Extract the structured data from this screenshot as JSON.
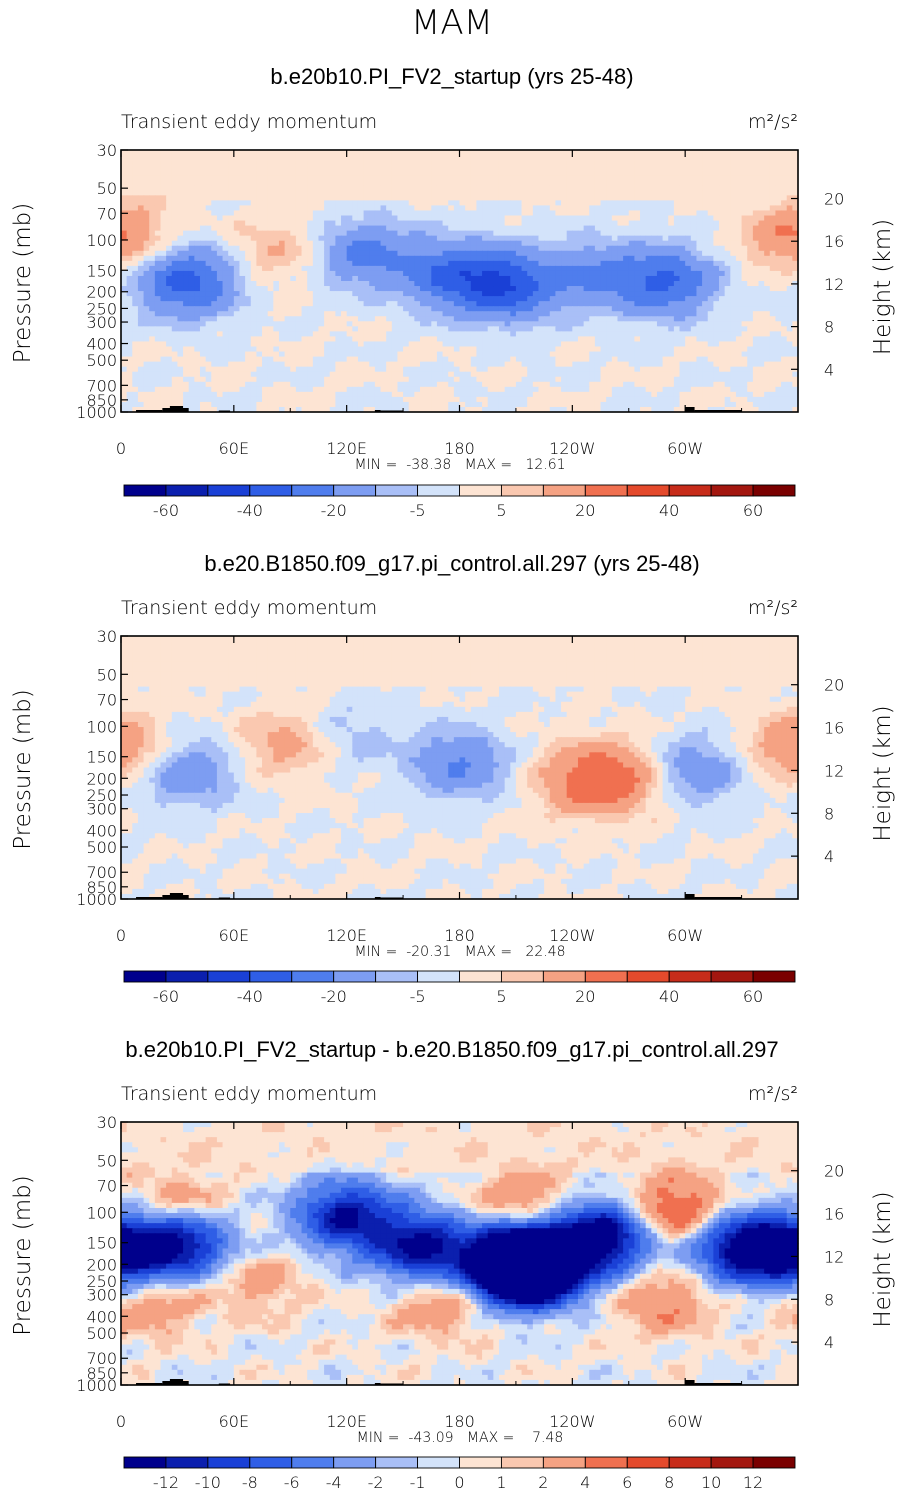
{
  "page": {
    "season": "MAM"
  },
  "colors": {
    "scale": [
      "#00008c",
      "#0b1fae",
      "#1a40d6",
      "#2f5ee6",
      "#4f7ded",
      "#7d9df2",
      "#a9bff7",
      "#d3e3fa",
      "#fde4d3",
      "#fac8b0",
      "#f5a283",
      "#f07050",
      "#e44a2c",
      "#c72c1a",
      "#a3170f",
      "#7a0000"
    ],
    "topography": "#000000"
  },
  "colorbars": [
    {
      "labels": [
        "-60",
        "-40",
        "-20",
        "-5",
        "5",
        "20",
        "40",
        "60"
      ]
    },
    {
      "labels": [
        "-60",
        "-40",
        "-20",
        "-5",
        "5",
        "20",
        "40",
        "60"
      ]
    },
    {
      "labels": [
        "-12",
        "-10",
        "-8",
        "-6",
        "-4",
        "-2",
        "-1",
        "0",
        "1",
        "2",
        "4",
        "6",
        "8",
        "10",
        "12"
      ]
    }
  ],
  "chart_data": [
    {
      "type": "heatmap",
      "title": "b.e20b10.PI_FV2_startup (yrs 25-48)",
      "subtitle_left": "Transient eddy momentum",
      "units": "m²/s²",
      "ylabel": "Pressure (mb)",
      "ylabel_right": "Height (km)",
      "x_ticks": [
        "0",
        "60E",
        "120E",
        "180",
        "120W",
        "60W"
      ],
      "y_ticks": [
        "30",
        "50",
        "70",
        "100",
        "150",
        "200",
        "250",
        "300",
        "400",
        "500",
        "700",
        "850",
        "1000"
      ],
      "y_ticks_right": [
        "20",
        "16",
        "12",
        "8",
        "4"
      ],
      "min_max_text": "MIN =  -38.38   MAX =   12.61",
      "levels": [
        -70,
        -60,
        -50,
        -40,
        -30,
        -20,
        -10,
        -5,
        0,
        5,
        10,
        20,
        30,
        40,
        50,
        60,
        70
      ],
      "features": [
        {
          "lon": 35,
          "p": 175,
          "value": -35
        },
        {
          "lon": 205,
          "p": 185,
          "value": -36
        },
        {
          "lon": 175,
          "p": 160,
          "value": -27
        },
        {
          "lon": 290,
          "p": 175,
          "value": -31
        },
        {
          "lon": 130,
          "p": 120,
          "value": -22
        },
        {
          "lon": 250,
          "p": 160,
          "value": -18
        },
        {
          "lon": 0,
          "p": 95,
          "value": 11
        },
        {
          "lon": 82,
          "p": 115,
          "value": 10
        },
        {
          "lon": 357,
          "p": 95,
          "value": 10
        }
      ]
    },
    {
      "type": "heatmap",
      "title": "b.e20.B1850.f09_g17.pi_control.all.297 (yrs 25-48)",
      "subtitle_left": "Transient eddy momentum",
      "units": "m²/s²",
      "ylabel": "Pressure (mb)",
      "ylabel_right": "Height (km)",
      "x_ticks": [
        "0",
        "60E",
        "120E",
        "180",
        "120W",
        "60W"
      ],
      "y_ticks": [
        "30",
        "50",
        "70",
        "100",
        "150",
        "200",
        "250",
        "300",
        "400",
        "500",
        "700",
        "850",
        "1000"
      ],
      "y_ticks_right": [
        "20",
        "16",
        "12",
        "8",
        "4"
      ],
      "min_max_text": "MIN =  -20.31   MAX =   22.48",
      "levels": [
        -70,
        -60,
        -50,
        -40,
        -30,
        -20,
        -10,
        -5,
        0,
        5,
        10,
        20,
        30,
        40,
        50,
        60,
        70
      ],
      "features": [
        {
          "lon": 35,
          "p": 185,
          "value": -18
        },
        {
          "lon": 180,
          "p": 165,
          "value": -20
        },
        {
          "lon": 305,
          "p": 180,
          "value": -17
        },
        {
          "lon": 120,
          "p": 110,
          "value": -8
        },
        {
          "lon": 265,
          "p": 200,
          "value": 20
        },
        {
          "lon": 245,
          "p": 205,
          "value": 17
        },
        {
          "lon": 88,
          "p": 125,
          "value": 14
        },
        {
          "lon": 2,
          "p": 140,
          "value": 11
        },
        {
          "lon": 355,
          "p": 120,
          "value": 8
        }
      ]
    },
    {
      "type": "heatmap",
      "title": "b.e20b10.PI_FV2_startup - b.e20.B1850.f09_g17.pi_control.all.297",
      "subtitle_left": "Transient eddy momentum",
      "units": "m²/s²",
      "ylabel": "Pressure (mb)",
      "ylabel_right": "Height (km)",
      "x_ticks": [
        "0",
        "60E",
        "120E",
        "180",
        "120W",
        "60W"
      ],
      "y_ticks": [
        "30",
        "50",
        "70",
        "100",
        "150",
        "200",
        "250",
        "300",
        "400",
        "500",
        "700",
        "850",
        "1000"
      ],
      "y_ticks_right": [
        "20",
        "16",
        "12",
        "8",
        "4"
      ],
      "min_max_text": "MIN =  -43.09   MAX =    7.48",
      "levels": [
        -14,
        -12,
        -10,
        -8,
        -6,
        -4,
        -2,
        -1,
        0,
        1,
        2,
        4,
        6,
        8,
        10,
        12,
        14
      ],
      "features": [
        {
          "lon": 0,
          "p": 170,
          "value": -13
        },
        {
          "lon": 32,
          "p": 150,
          "value": -13
        },
        {
          "lon": 120,
          "p": 105,
          "value": -12
        },
        {
          "lon": 215,
          "p": 200,
          "value": -43
        },
        {
          "lon": 160,
          "p": 160,
          "value": -13
        },
        {
          "lon": 330,
          "p": 160,
          "value": -13
        },
        {
          "lon": 255,
          "p": 140,
          "value": -15
        },
        {
          "lon": 72,
          "p": 250,
          "value": 3
        },
        {
          "lon": 170,
          "p": 330,
          "value": 4
        },
        {
          "lon": 290,
          "p": 330,
          "value": 4
        },
        {
          "lon": 15,
          "p": 330,
          "value": 4
        },
        {
          "lon": 295,
          "p": 98,
          "value": 7
        },
        {
          "lon": 215,
          "p": 95,
          "value": 5
        },
        {
          "lon": 30,
          "p": 98,
          "value": 5
        }
      ]
    }
  ]
}
